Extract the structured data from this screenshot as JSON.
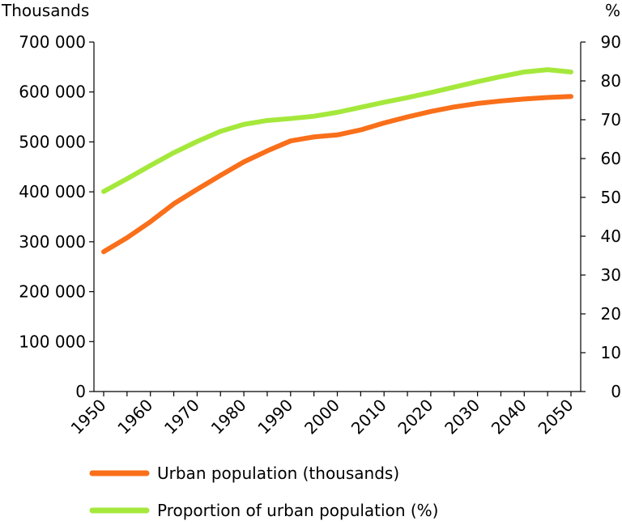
{
  "chart_data": {
    "type": "line",
    "y_left_label": "Thousands",
    "y_right_label": "%",
    "x": [
      "1950",
      "1955",
      "1960",
      "1965",
      "1970",
      "1975",
      "1980",
      "1985",
      "1990",
      "1995",
      "2000",
      "2005",
      "2010",
      "2015",
      "2020",
      "2025",
      "2030",
      "2035",
      "2040",
      "2045",
      "2050"
    ],
    "x_tick_labels": [
      "1950",
      "1960",
      "1970",
      "1980",
      "1990",
      "2000",
      "2010",
      "2020",
      "2030",
      "2040",
      "2050"
    ],
    "y_left_ticks": [
      "0",
      "100 000",
      "200 000",
      "300 000",
      "400 000",
      "500 000",
      "600 000",
      "700 000"
    ],
    "y_right_ticks": [
      "0",
      "10",
      "20",
      "30",
      "40",
      "50",
      "60",
      "70",
      "80",
      "90"
    ],
    "ylim_left": [
      0,
      700000
    ],
    "ylim_right": [
      0,
      90
    ],
    "grid": false,
    "legend_position": "bottom",
    "series": [
      {
        "name": "Urban population (thousands)",
        "axis": "left",
        "color": "#f96f1a",
        "values": [
          280000,
          308000,
          340000,
          376000,
          405000,
          433000,
          460000,
          482000,
          502000,
          510000,
          514000,
          524000,
          538000,
          550000,
          561000,
          570000,
          577000,
          582000,
          586000,
          589000,
          591000
        ]
      },
      {
        "name": "Proportion of urban population (%)",
        "axis": "right",
        "color": "#a5e83c",
        "values": [
          51.5,
          54.8,
          58.2,
          61.5,
          64.4,
          67.0,
          68.8,
          69.8,
          70.3,
          70.9,
          71.9,
          73.2,
          74.5,
          75.7,
          77.0,
          78.4,
          79.8,
          81.1,
          82.3,
          82.9,
          82.3
        ]
      }
    ]
  }
}
